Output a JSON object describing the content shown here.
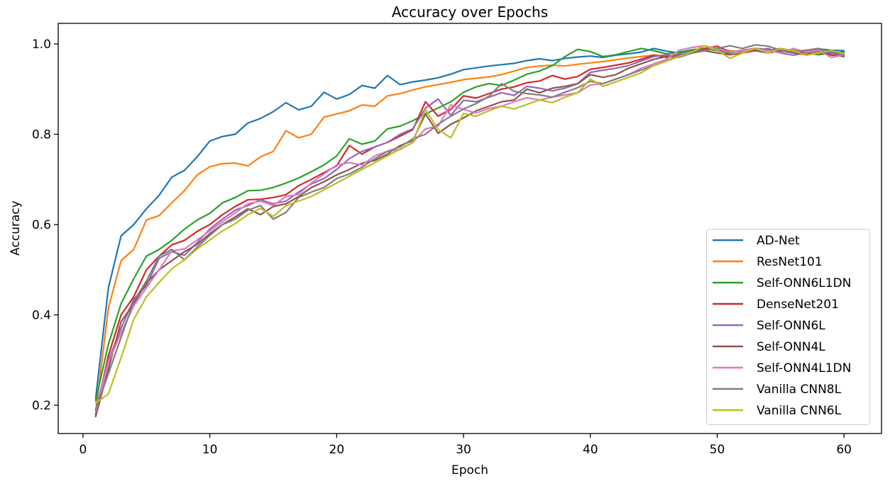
{
  "chart_data": {
    "type": "line",
    "title": "Accuracy over Epochs",
    "xlabel": "Epoch",
    "ylabel": "Accuracy",
    "grid": false,
    "legend_position": "center-right",
    "legend_border_color": "#cccccc",
    "legend_background": "#ffffff",
    "axis_color": "#000000",
    "line_width": 2.2,
    "xlim": [
      -1.955,
      62.955
    ],
    "ylim": [
      0.1373,
      1.0455
    ],
    "xticks": [
      0,
      10,
      20,
      30,
      40,
      50,
      60
    ],
    "xtick_labels": [
      "0",
      "10",
      "20",
      "30",
      "40",
      "50",
      "60"
    ],
    "yticks": [
      0.2,
      0.4,
      0.6,
      0.8,
      1.0
    ],
    "ytick_labels": [
      "0.2",
      "0.4",
      "0.6",
      "0.8",
      "1.0"
    ],
    "x": [
      1,
      2,
      3,
      4,
      5,
      6,
      7,
      8,
      9,
      10,
      11,
      12,
      13,
      14,
      15,
      16,
      17,
      18,
      19,
      20,
      21,
      22,
      23,
      24,
      25,
      26,
      27,
      28,
      29,
      30,
      31,
      32,
      33,
      34,
      35,
      36,
      37,
      38,
      39,
      40,
      41,
      42,
      43,
      44,
      45,
      46,
      47,
      48,
      49,
      50,
      51,
      52,
      53,
      54,
      55,
      56,
      57,
      58,
      59,
      60
    ],
    "series": [
      {
        "name": "AD-Net",
        "color": "#1f77b4",
        "values": [
          0.215,
          0.46,
          0.575,
          0.6,
          0.635,
          0.665,
          0.705,
          0.72,
          0.75,
          0.785,
          0.795,
          0.8,
          0.825,
          0.835,
          0.85,
          0.87,
          0.854,
          0.862,
          0.893,
          0.878,
          0.888,
          0.908,
          0.902,
          0.93,
          0.91,
          0.916,
          0.92,
          0.925,
          0.933,
          0.943,
          0.947,
          0.951,
          0.954,
          0.957,
          0.963,
          0.967,
          0.963,
          0.968,
          0.971,
          0.973,
          0.97,
          0.975,
          0.978,
          0.982,
          0.99,
          0.984,
          0.98,
          0.986,
          0.99,
          0.985,
          0.981,
          0.986,
          0.99,
          0.988,
          0.984,
          0.982,
          0.985,
          0.989,
          0.986,
          0.985
        ]
      },
      {
        "name": "ResNet101",
        "color": "#ff7f0e",
        "values": [
          0.185,
          0.415,
          0.52,
          0.545,
          0.61,
          0.62,
          0.648,
          0.675,
          0.71,
          0.728,
          0.735,
          0.736,
          0.73,
          0.75,
          0.762,
          0.808,
          0.792,
          0.8,
          0.838,
          0.845,
          0.852,
          0.865,
          0.862,
          0.885,
          0.89,
          0.898,
          0.905,
          0.91,
          0.915,
          0.921,
          0.924,
          0.927,
          0.932,
          0.94,
          0.948,
          0.951,
          0.953,
          0.951,
          0.955,
          0.958,
          0.961,
          0.965,
          0.969,
          0.972,
          0.975,
          0.974,
          0.977,
          0.98,
          0.985,
          0.99,
          0.985,
          0.982,
          0.985,
          0.988,
          0.984,
          0.98,
          0.983,
          0.985,
          0.98,
          0.978
        ]
      },
      {
        "name": "Self-ONN6L1DN",
        "color": "#2ca02c",
        "values": [
          0.21,
          0.335,
          0.425,
          0.48,
          0.53,
          0.545,
          0.565,
          0.59,
          0.61,
          0.625,
          0.648,
          0.66,
          0.675,
          0.676,
          0.682,
          0.692,
          0.703,
          0.717,
          0.732,
          0.752,
          0.79,
          0.778,
          0.785,
          0.812,
          0.818,
          0.83,
          0.845,
          0.858,
          0.872,
          0.893,
          0.905,
          0.912,
          0.908,
          0.92,
          0.933,
          0.94,
          0.952,
          0.972,
          0.988,
          0.983,
          0.972,
          0.976,
          0.983,
          0.99,
          0.985,
          0.978,
          0.982,
          0.987,
          0.99,
          0.985,
          0.98,
          0.986,
          0.99,
          0.986,
          0.981,
          0.986,
          0.98,
          0.976,
          0.98,
          0.982
        ]
      },
      {
        "name": "DenseNet201",
        "color": "#d62728",
        "values": [
          0.18,
          0.31,
          0.4,
          0.44,
          0.5,
          0.53,
          0.555,
          0.565,
          0.585,
          0.6,
          0.622,
          0.64,
          0.655,
          0.656,
          0.66,
          0.666,
          0.686,
          0.7,
          0.715,
          0.73,
          0.775,
          0.756,
          0.772,
          0.782,
          0.796,
          0.81,
          0.872,
          0.84,
          0.855,
          0.885,
          0.88,
          0.89,
          0.9,
          0.905,
          0.914,
          0.918,
          0.93,
          0.922,
          0.928,
          0.944,
          0.948,
          0.953,
          0.958,
          0.966,
          0.975,
          0.97,
          0.975,
          0.98,
          0.99,
          0.995,
          0.982,
          0.986,
          0.988,
          0.985,
          0.99,
          0.985,
          0.98,
          0.984,
          0.975,
          0.975
        ]
      },
      {
        "name": "Self-ONN6L",
        "color": "#9467bd",
        "values": [
          0.19,
          0.3,
          0.37,
          0.435,
          0.465,
          0.525,
          0.54,
          0.532,
          0.56,
          0.59,
          0.612,
          0.632,
          0.642,
          0.655,
          0.646,
          0.652,
          0.672,
          0.69,
          0.702,
          0.722,
          0.746,
          0.762,
          0.772,
          0.782,
          0.8,
          0.812,
          0.858,
          0.878,
          0.842,
          0.875,
          0.872,
          0.882,
          0.892,
          0.886,
          0.906,
          0.902,
          0.896,
          0.902,
          0.912,
          0.937,
          0.942,
          0.946,
          0.952,
          0.962,
          0.972,
          0.976,
          0.97,
          0.98,
          0.986,
          0.99,
          0.976,
          0.98,
          0.985,
          0.99,
          0.98,
          0.975,
          0.98,
          0.986,
          0.98,
          0.975
        ]
      },
      {
        "name": "Self-ONN4L",
        "color": "#8c564b",
        "values": [
          0.175,
          0.28,
          0.385,
          0.425,
          0.47,
          0.5,
          0.52,
          0.54,
          0.556,
          0.58,
          0.6,
          0.617,
          0.635,
          0.622,
          0.64,
          0.646,
          0.662,
          0.682,
          0.695,
          0.71,
          0.722,
          0.736,
          0.742,
          0.756,
          0.775,
          0.786,
          0.845,
          0.802,
          0.822,
          0.836,
          0.852,
          0.862,
          0.872,
          0.876,
          0.9,
          0.892,
          0.902,
          0.906,
          0.912,
          0.932,
          0.926,
          0.932,
          0.946,
          0.956,
          0.966,
          0.972,
          0.976,
          0.98,
          0.985,
          0.98,
          0.976,
          0.98,
          0.985,
          0.98,
          0.985,
          0.98,
          0.976,
          0.98,
          0.976,
          0.972
        ]
      },
      {
        "name": "Self-ONN4L1DN",
        "color": "#e377c2",
        "values": [
          0.185,
          0.295,
          0.36,
          0.42,
          0.46,
          0.5,
          0.542,
          0.546,
          0.566,
          0.586,
          0.606,
          0.626,
          0.646,
          0.652,
          0.642,
          0.662,
          0.667,
          0.692,
          0.712,
          0.732,
          0.737,
          0.732,
          0.752,
          0.762,
          0.766,
          0.782,
          0.812,
          0.818,
          0.865,
          0.855,
          0.847,
          0.857,
          0.862,
          0.872,
          0.881,
          0.876,
          0.882,
          0.887,
          0.892,
          0.909,
          0.912,
          0.922,
          0.932,
          0.946,
          0.956,
          0.966,
          0.986,
          0.992,
          0.996,
          0.99,
          0.982,
          0.986,
          0.99,
          0.985,
          0.98,
          0.99,
          0.982,
          0.986,
          0.97,
          0.976
        ]
      },
      {
        "name": "Vanilla CNN8L",
        "color": "#7f7f7f",
        "values": [
          0.19,
          0.27,
          0.35,
          0.43,
          0.475,
          0.53,
          0.545,
          0.522,
          0.55,
          0.576,
          0.6,
          0.612,
          0.632,
          0.642,
          0.612,
          0.627,
          0.66,
          0.672,
          0.682,
          0.702,
          0.712,
          0.727,
          0.746,
          0.762,
          0.772,
          0.79,
          0.8,
          0.822,
          0.84,
          0.856,
          0.868,
          0.884,
          0.912,
          0.895,
          0.89,
          0.887,
          0.882,
          0.893,
          0.903,
          0.917,
          0.912,
          0.922,
          0.932,
          0.942,
          0.952,
          0.962,
          0.976,
          0.982,
          0.986,
          0.99,
          0.996,
          0.99,
          0.998,
          0.995,
          0.986,
          0.982,
          0.986,
          0.99,
          0.982,
          0.976
        ]
      },
      {
        "name": "Vanilla CNN6L",
        "color": "#bcbd22",
        "values": [
          0.205,
          0.225,
          0.305,
          0.39,
          0.44,
          0.472,
          0.502,
          0.522,
          0.546,
          0.566,
          0.586,
          0.602,
          0.622,
          0.636,
          0.618,
          0.642,
          0.652,
          0.662,
          0.677,
          0.692,
          0.707,
          0.722,
          0.737,
          0.752,
          0.767,
          0.782,
          0.855,
          0.81,
          0.792,
          0.846,
          0.84,
          0.852,
          0.862,
          0.856,
          0.866,
          0.876,
          0.87,
          0.882,
          0.892,
          0.922,
          0.906,
          0.916,
          0.926,
          0.936,
          0.952,
          0.962,
          0.972,
          0.982,
          0.996,
          0.986,
          0.968,
          0.98,
          0.99,
          0.98,
          0.99,
          0.985,
          0.975,
          0.98,
          0.986,
          0.978
        ]
      }
    ]
  }
}
